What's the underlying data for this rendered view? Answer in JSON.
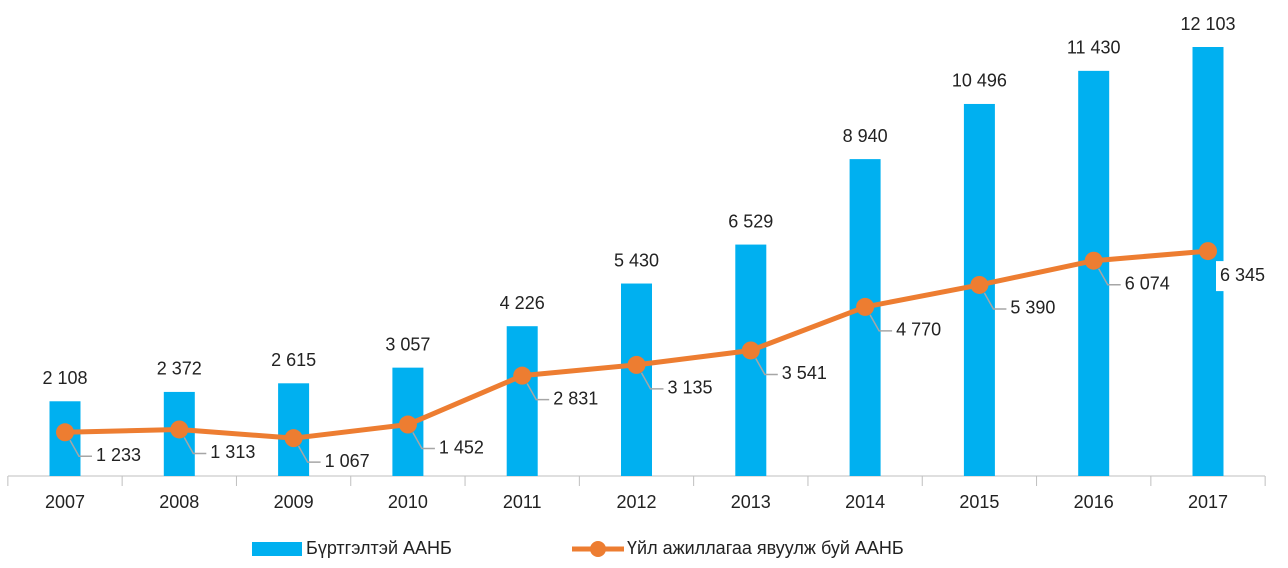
{
  "chart_data": {
    "type": "bar_line",
    "categories": [
      "2007",
      "2008",
      "2009",
      "2010",
      "2011",
      "2012",
      "2013",
      "2014",
      "2015",
      "2016",
      "2017"
    ],
    "series": [
      {
        "name": "Бүртгэлтэй ААНБ",
        "type": "bar",
        "color": "#00b0f0",
        "values": [
          2108,
          2372,
          2615,
          3057,
          4226,
          5430,
          6529,
          8940,
          10496,
          11430,
          12103
        ],
        "value_labels": [
          "2 108",
          "2 372",
          "2 615",
          "3 057",
          "4 226",
          "5 430",
          "6 529",
          "8 940",
          "10 496",
          "11 430",
          "12 103"
        ]
      },
      {
        "name": "Үйл ажиллагаа явуулж буй ААНБ",
        "type": "line",
        "color": "#ed7d31",
        "values": [
          1233,
          1313,
          1067,
          1452,
          2831,
          3135,
          3541,
          4770,
          5390,
          6074,
          6345
        ],
        "value_labels": [
          "1 233",
          "1 313",
          "1 067",
          "1 452",
          "2 831",
          "3 135",
          "3 541",
          "4 770",
          "5 390",
          "6 074",
          "6 345"
        ]
      }
    ],
    "legend": "bottom"
  }
}
